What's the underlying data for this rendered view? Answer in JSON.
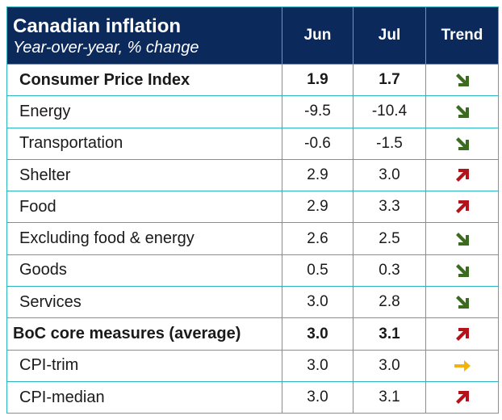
{
  "header": {
    "title": "Canadian inflation",
    "subtitle": "Year-over-year, % change",
    "col_jun": "Jun",
    "col_jul": "Jul",
    "col_trend": "Trend"
  },
  "colors": {
    "header_bg": "#0b2a5b",
    "border": "#2bb4c2",
    "trend_down": "#3a6b1f",
    "trend_up": "#b3141b",
    "trend_flat": "#f2b40a"
  },
  "rows": [
    {
      "label": "Consumer Price Index",
      "jun": "1.9",
      "jul": "1.7",
      "trend": "down-arrow-icon",
      "bold": true
    },
    {
      "label": "Energy",
      "jun": "-9.5",
      "jul": "-10.4",
      "trend": "down-arrow-icon",
      "bold": false
    },
    {
      "label": "Transportation",
      "jun": "-0.6",
      "jul": "-1.5",
      "trend": "down-arrow-icon",
      "bold": false
    },
    {
      "label": "Shelter",
      "jun": "2.9",
      "jul": "3.0",
      "trend": "up-arrow-icon",
      "bold": false
    },
    {
      "label": "Food",
      "jun": "2.9",
      "jul": "3.3",
      "trend": "up-arrow-icon",
      "bold": false
    },
    {
      "label": "Excluding food & energy",
      "jun": "2.6",
      "jul": "2.5",
      "trend": "down-arrow-icon",
      "bold": false
    },
    {
      "label": "Goods",
      "jun": "0.5",
      "jul": "0.3",
      "trend": "down-arrow-icon",
      "bold": false
    },
    {
      "label": "Services",
      "jun": "3.0",
      "jul": "2.8",
      "trend": "down-arrow-icon",
      "bold": false
    },
    {
      "label": "BoC core measures (average)",
      "jun": "3.0",
      "jul": "3.1",
      "trend": "up-arrow-icon",
      "bold": true
    },
    {
      "label": "CPI-trim",
      "jun": "3.0",
      "jul": "3.0",
      "trend": "right-arrow-icon",
      "bold": false
    },
    {
      "label": "CPI-median",
      "jun": "3.0",
      "jul": "3.1",
      "trend": "up-arrow-icon",
      "bold": false
    }
  ]
}
